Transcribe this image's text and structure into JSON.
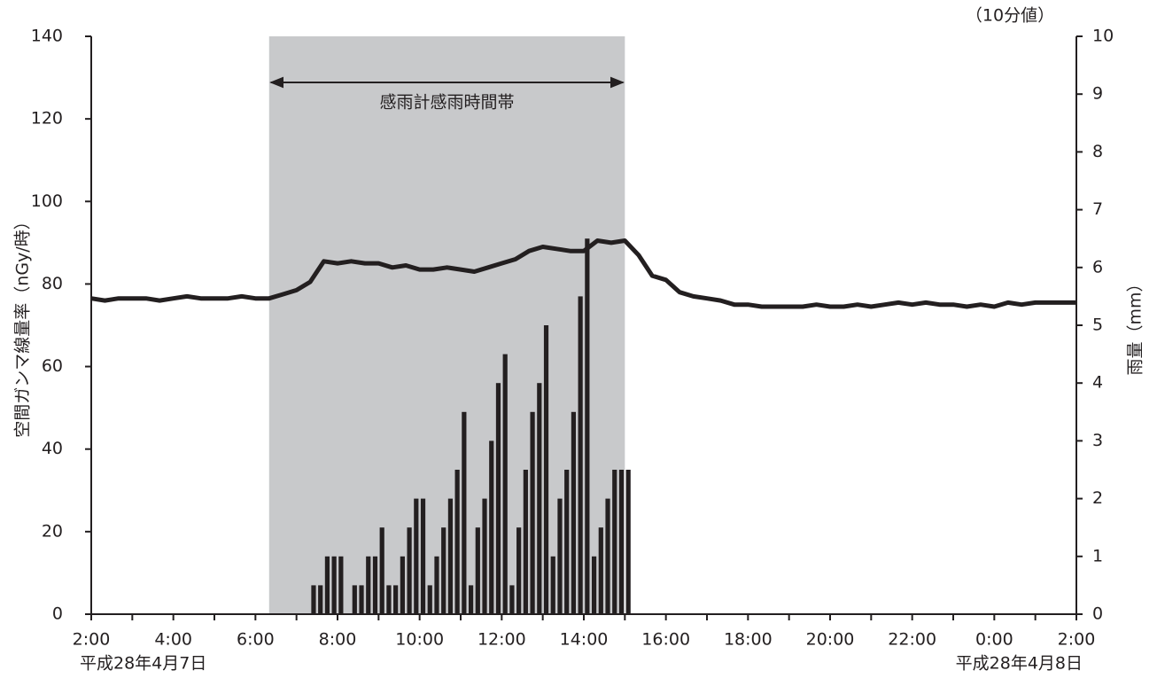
{
  "chart_data": {
    "type": "combo",
    "corner_note": "（10分値）",
    "y_label": "空間ガンマ線量率（nGy/時）",
    "y2_label": "雨量（mm）",
    "annotation": "感雨計感雨時間帯",
    "shade": [
      260,
      780
    ],
    "shade_color": "#c8c9cb",
    "date_labels": [
      "平成28年4月7日",
      "平成28年4月8日"
    ],
    "xlim": [
      0,
      1440
    ],
    "xticks": [
      {
        "value": 0,
        "label": "2:00"
      },
      {
        "value": 120,
        "label": "4:00"
      },
      {
        "value": 240,
        "label": "6:00"
      },
      {
        "value": 360,
        "label": "8:00"
      },
      {
        "value": 480,
        "label": "10:00"
      },
      {
        "value": 600,
        "label": "12:00"
      },
      {
        "value": 720,
        "label": "14:00"
      },
      {
        "value": 840,
        "label": "16:00"
      },
      {
        "value": 960,
        "label": "18:00"
      },
      {
        "value": 1080,
        "label": "20:00"
      },
      {
        "value": 1200,
        "label": "22:00"
      },
      {
        "value": 1320,
        "label": "0:00"
      },
      {
        "value": 1440,
        "label": "2:00"
      }
    ],
    "ylim": [
      0,
      140
    ],
    "yticks": [
      0,
      20,
      40,
      60,
      80,
      100,
      120,
      140
    ],
    "y2lim": [
      0,
      10
    ],
    "y2ticks": [
      0,
      1,
      2,
      3,
      4,
      5,
      6,
      7,
      8,
      9,
      10
    ],
    "series": [
      {
        "type": "bar",
        "axis": "y2",
        "color": "#231f20",
        "x": [
          325,
          335,
          345,
          355,
          365,
          375,
          385,
          395,
          405,
          415,
          425,
          435,
          445,
          455,
          465,
          475,
          485,
          495,
          505,
          515,
          525,
          535,
          545,
          555,
          565,
          575,
          585,
          595,
          605,
          615,
          625,
          635,
          645,
          655,
          665,
          675,
          685,
          695,
          705,
          715,
          725,
          735,
          745,
          755,
          765,
          775,
          785
        ],
        "values": [
          0.5,
          0.5,
          1,
          1,
          1,
          0,
          0.5,
          0.5,
          1,
          1,
          1.5,
          0.5,
          0.5,
          1,
          1.5,
          2,
          2,
          0.5,
          1,
          1.5,
          2,
          2.5,
          3.5,
          0.5,
          1.5,
          2,
          3,
          4,
          4.5,
          0.5,
          1.5,
          2.5,
          3.5,
          4,
          5,
          1,
          2,
          2.5,
          3.5,
          5.5,
          6.5,
          1,
          1.5,
          2,
          2.5,
          2.5,
          2.5
        ]
      },
      {
        "type": "line",
        "axis": "y",
        "color": "#231f20",
        "x": [
          0,
          20,
          40,
          60,
          80,
          100,
          120,
          140,
          160,
          180,
          200,
          220,
          240,
          260,
          280,
          300,
          320,
          340,
          360,
          380,
          400,
          420,
          440,
          460,
          480,
          500,
          520,
          540,
          560,
          580,
          600,
          620,
          640,
          660,
          680,
          700,
          720,
          740,
          760,
          780,
          800,
          820,
          840,
          860,
          880,
          900,
          920,
          940,
          960,
          980,
          1000,
          1020,
          1040,
          1060,
          1080,
          1100,
          1120,
          1140,
          1160,
          1180,
          1200,
          1220,
          1240,
          1260,
          1280,
          1300,
          1320,
          1340,
          1360,
          1380,
          1400,
          1420,
          1440
        ],
        "values": [
          76.5,
          76,
          76.5,
          76.5,
          76.5,
          76,
          76.5,
          77,
          76.5,
          76.5,
          76.5,
          77,
          76.5,
          76.5,
          77.5,
          78.5,
          80.5,
          85.5,
          85,
          85.5,
          85,
          85,
          84,
          84.5,
          83.5,
          83.5,
          84,
          83.5,
          83,
          84,
          85,
          86,
          88,
          89,
          88.5,
          88,
          88,
          90.5,
          90,
          90.5,
          87,
          82,
          81,
          78,
          77,
          76.5,
          76,
          75,
          75,
          74.5,
          74.5,
          74.5,
          74.5,
          75,
          74.5,
          74.5,
          75,
          74.5,
          75,
          75.5,
          75,
          75.5,
          75,
          75,
          74.5,
          75,
          74.5,
          75.5,
          75,
          75.5,
          75.5,
          75.5,
          75.5
        ]
      }
    ]
  }
}
